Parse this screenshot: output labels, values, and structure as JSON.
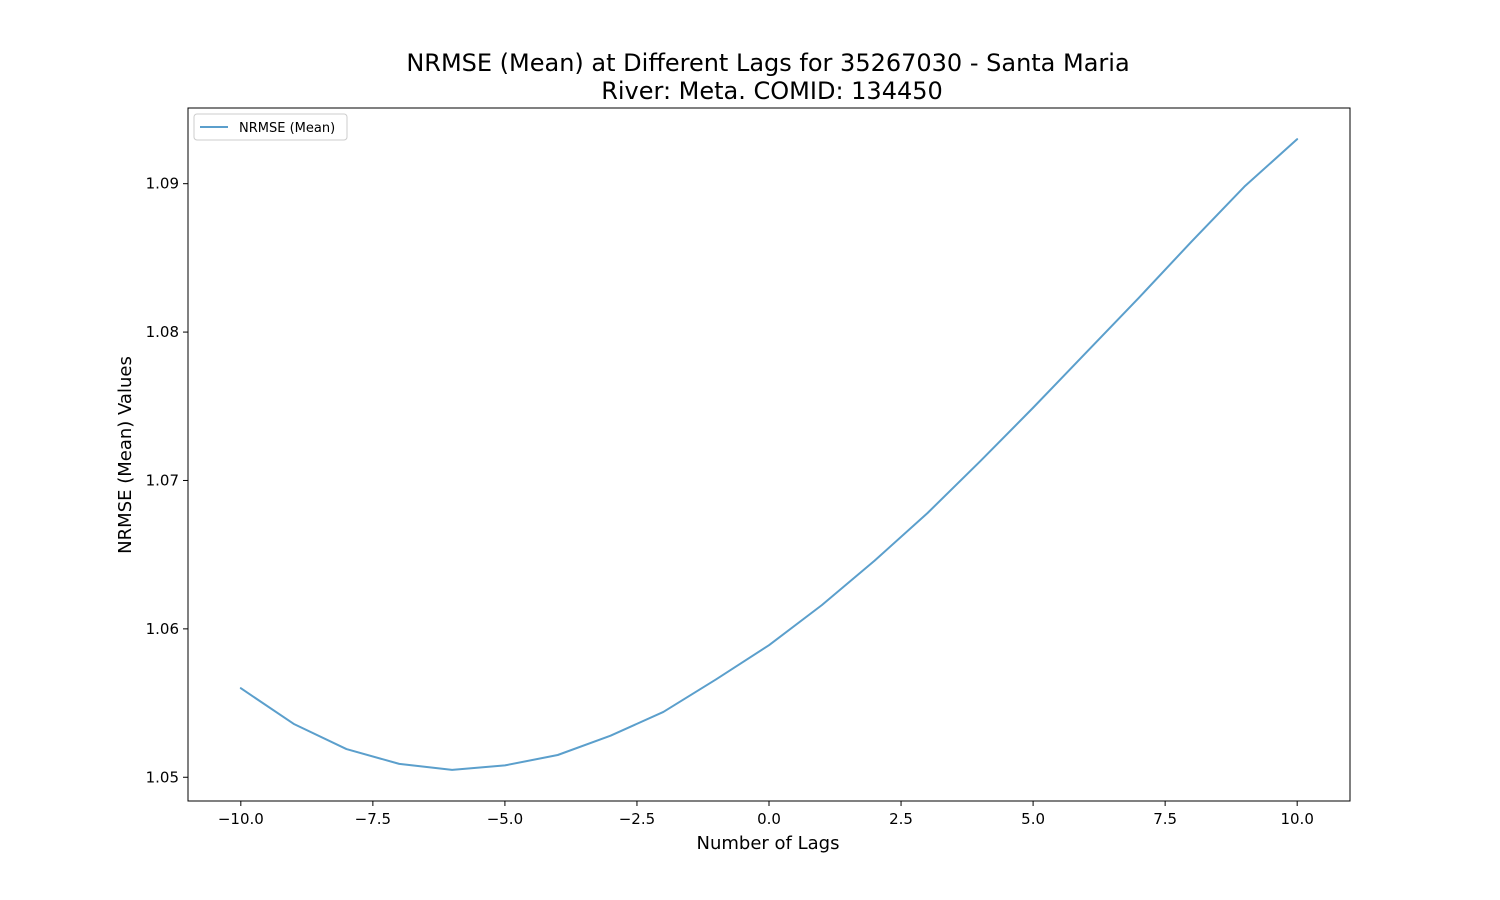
{
  "chart_data": {
    "type": "line",
    "title_lines": [
      "NRMSE (Mean) at Different Lags for 35267030 - Santa Maria",
      "River: Meta. COMID: 134450"
    ],
    "xlabel": "Number of Lags",
    "ylabel": "NRMSE (Mean) Values",
    "xlim": [
      -11,
      11
    ],
    "ylim": [
      1.0484,
      1.0951
    ],
    "x_ticks": [
      -10.0,
      -7.5,
      -5.0,
      -2.5,
      0.0,
      2.5,
      5.0,
      7.5,
      10.0
    ],
    "x_tick_labels": [
      "−10.0",
      "−7.5",
      "−5.0",
      "−2.5",
      "0.0",
      "2.5",
      "5.0",
      "7.5",
      "10.0"
    ],
    "y_ticks": [
      1.05,
      1.06,
      1.07,
      1.08,
      1.09
    ],
    "y_tick_labels": [
      "1.05",
      "1.06",
      "1.07",
      "1.08",
      "1.09"
    ],
    "grid": false,
    "legend_position": "top-left",
    "series": [
      {
        "name": "NRMSE (Mean)",
        "color": "#5b9fcc",
        "x": [
          -10,
          -9,
          -8,
          -7,
          -6,
          -5,
          -4,
          -3,
          -2,
          -1,
          0,
          1,
          2,
          3,
          4,
          5,
          6,
          7,
          8,
          9,
          10
        ],
        "y": [
          1.056,
          1.0536,
          1.0519,
          1.0509,
          1.0505,
          1.0508,
          1.0515,
          1.0528,
          1.0544,
          1.0566,
          1.0589,
          1.0616,
          1.0646,
          1.0678,
          1.0713,
          1.0749,
          1.0786,
          1.0823,
          1.0861,
          1.0898,
          1.093
        ]
      }
    ]
  }
}
